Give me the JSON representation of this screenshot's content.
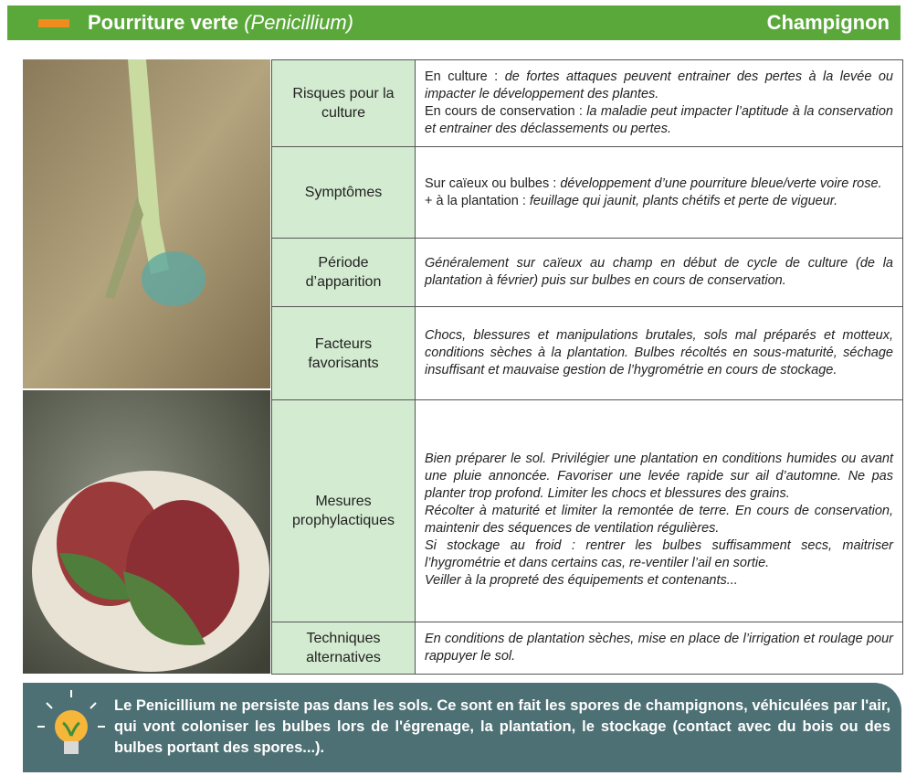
{
  "header": {
    "title": "Pourriture verte",
    "title_latin": "(Penicillium)",
    "category": "Champignon"
  },
  "table": {
    "rows": [
      {
        "label": "Risques pour la culture",
        "paragraphs": [
          {
            "lead": "En culture :",
            "text": "de fortes attaques peuvent entrainer des pertes à la levée ou impacter le développement des plantes."
          },
          {
            "lead": "En cours de conservation :",
            "text": "la maladie peut impacter l’aptitude à la conservation et entrainer des déclassements ou pertes."
          }
        ]
      },
      {
        "label": "Symptômes",
        "paragraphs": [
          {
            "lead": "Sur caïeux ou bulbes :",
            "text": "développement d’une pourriture bleue/verte voire rose."
          },
          {
            "lead": "+ à la plantation :",
            "text": "feuillage qui jaunit, plants chétifs et perte de vigueur."
          }
        ]
      },
      {
        "label": "Période d’apparition",
        "paragraphs": [
          {
            "text": "Généralement sur caïeux au champ en début de cycle de culture (de la plantation à février) puis sur bulbes en cours de conservation."
          }
        ]
      },
      {
        "label": "Facteurs favorisants",
        "paragraphs": [
          {
            "text": "Chocs, blessures et manipulations brutales, sols mal préparés et motteux, conditions sèches à la plantation. Bulbes récoltés en sous-maturité, séchage insuffisant et mauvaise gestion de l’hygrométrie en cours de stockage."
          }
        ]
      },
      {
        "label": "Mesures prophylactiques",
        "paragraphs": [
          {
            "text": "Bien préparer le sol. Privilégier une plantation en conditions humides ou avant une pluie annoncée. Favoriser une levée rapide sur ail d’automne. Ne pas planter trop profond. Limiter les chocs et blessures des grains."
          },
          {
            "text": "Récolter à maturité et limiter la remontée de terre. En cours de conservation, maintenir des séquences de ventilation régulières."
          },
          {
            "text": "Si stockage au froid : rentrer les bulbes suffisamment secs, maitriser l’hygrométrie et dans certains cas, re-ventiler l’ail en sortie."
          },
          {
            "text": "Veiller à la propreté des équipements et contenants..."
          }
        ]
      },
      {
        "label": "Techniques alternatives",
        "paragraphs": [
          {
            "text": "En conditions de plantation sèches, mise en place de l’irrigation et roulage pour rappuyer le sol."
          }
        ]
      }
    ]
  },
  "note": "Le Penicillium ne persiste pas dans les sols. Ce sont en fait les spores de champignons, véhiculées par l'air, qui vont coloniser les bulbes lors de l'égrenage, la plantation, le stockage (contact avec du bois ou des bulbes portant des spores...)."
}
